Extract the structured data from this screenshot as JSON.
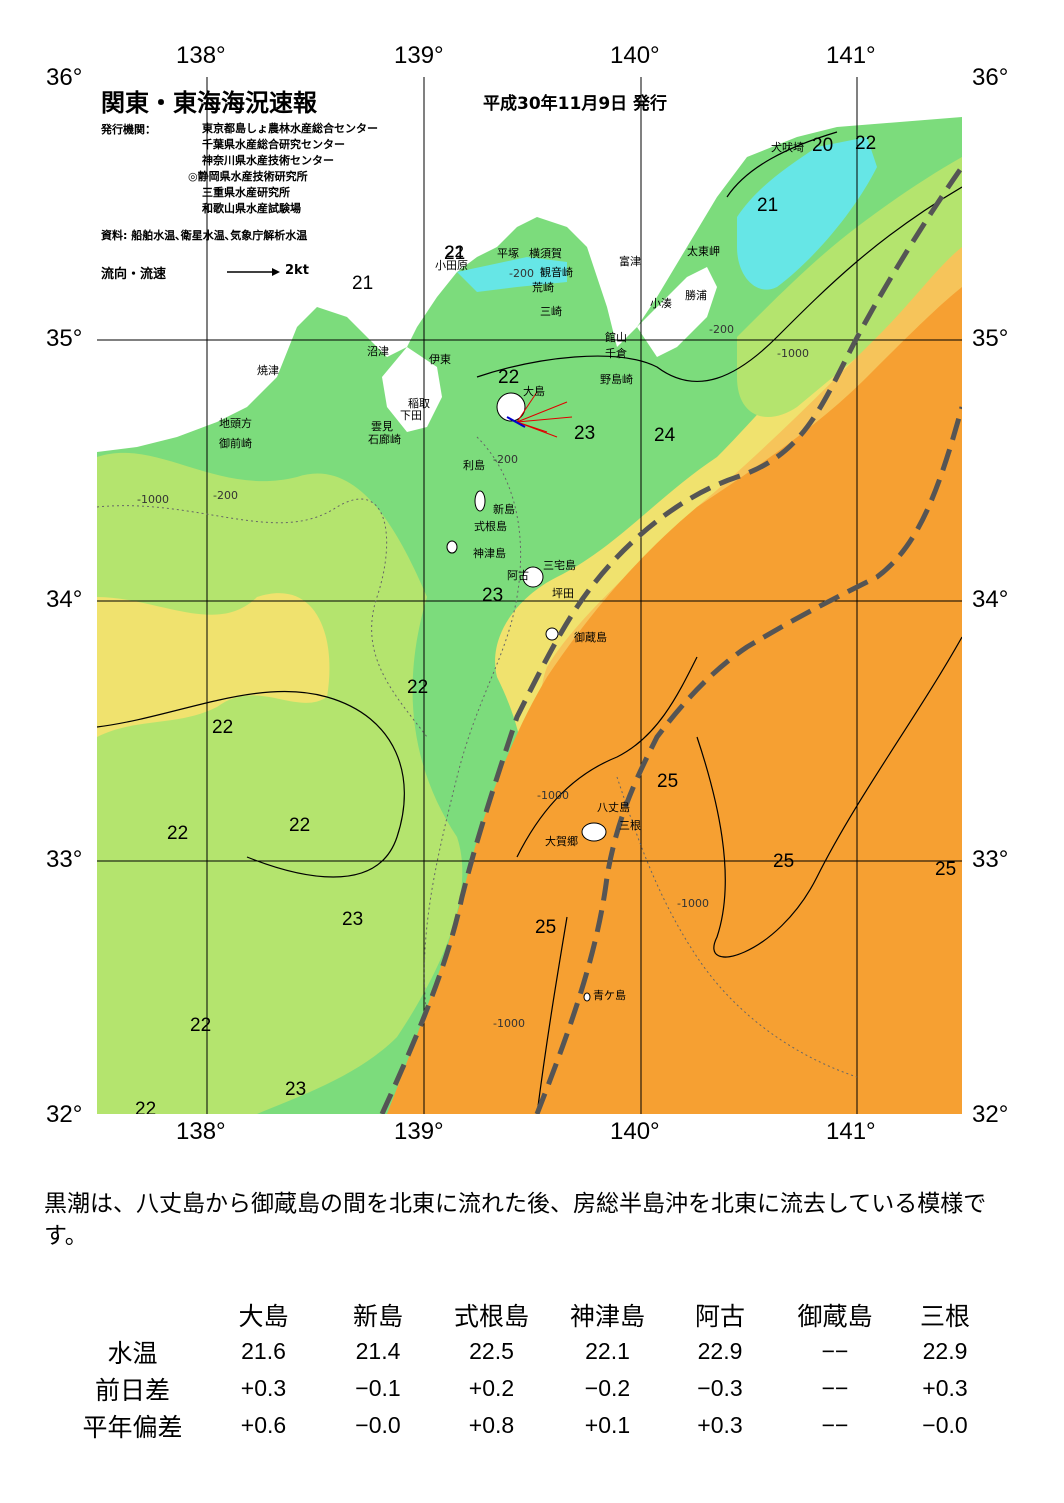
{
  "title": "関東・東海海況速報",
  "issue_date": "平成30年11月9日 発行",
  "issuer_label": "発行機関：",
  "issuers": [
    "東京都島しょ農林水産総合センター",
    "千葉県水産総合研究センター",
    "神奈川県水産技術センター",
    "◎静岡県水産技術研究所",
    "三重県水産研究所",
    "和歌山県水産試験場"
  ],
  "source_line": "資料: 船舶水温､衛星水温､気象庁解析水温",
  "flow_legend": {
    "label": "流向・流速",
    "scale": "2kt"
  },
  "axis": {
    "lon_labels": [
      "138°",
      "139°",
      "140°",
      "141°"
    ],
    "lat_labels": [
      "36°",
      "35°",
      "34°",
      "33°",
      "32°"
    ]
  },
  "colors": {
    "cold": "#66e6e6",
    "cool": "#7cdc7c",
    "mid": "#b4e46e",
    "warm": "#f0e26e",
    "warmer": "#f6c45a",
    "kuroshio": "#f6a032",
    "kuroshio_axis": "#555555",
    "land": "#ffffff"
  },
  "isotherm_labels": [
    "20",
    "22",
    "21",
    "21",
    "21",
    "22",
    "23",
    "24",
    "22",
    "23",
    "22",
    "22",
    "22",
    "22",
    "23",
    "25",
    "25",
    "25",
    "25",
    "23",
    "22",
    "22"
  ],
  "depth_labels": [
    "-200",
    "-1000"
  ],
  "places": [
    "犬吠埼",
    "太東岬",
    "勝浦",
    "小湊",
    "富津",
    "館山",
    "千倉",
    "野島崎",
    "横須賀",
    "観音崎",
    "荒崎",
    "三崎",
    "平塚",
    "小田原",
    "沼津",
    "焼津",
    "伊東",
    "稲取",
    "下田",
    "雲見",
    "石廊崎",
    "地頭方",
    "御前崎",
    "大島",
    "利島",
    "新島",
    "式根島",
    "神津島",
    "三宅島",
    "阿古",
    "坪田",
    "御蔵島",
    "八丈島",
    "三根",
    "大賀郷",
    "青ケ島"
  ],
  "summary": "黒潮は、八丈島から御蔵島の間を北東に流れた後、房総半島沖を北東に流去している模様です。",
  "table": {
    "columns": [
      "大島",
      "新島",
      "式根島",
      "神津島",
      "阿古",
      "御蔵島",
      "三根"
    ],
    "rows": [
      {
        "label": "水温",
        "values": [
          "21.6",
          "21.4",
          "22.5",
          "22.1",
          "22.9",
          "−−",
          "22.9"
        ]
      },
      {
        "label": "前日差",
        "values": [
          "+0.3",
          "−0.1",
          "+0.2",
          "−0.2",
          "−0.3",
          "−−",
          "+0.3"
        ]
      },
      {
        "label": "平年偏差",
        "values": [
          "+0.6",
          "−0.0",
          "+0.8",
          "+0.1",
          "+0.3",
          "−−",
          "−0.0"
        ]
      }
    ]
  }
}
